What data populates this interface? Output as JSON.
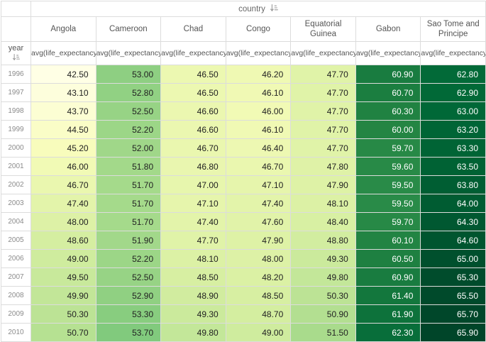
{
  "table": {
    "country_header": "country",
    "year_header": "year",
    "metric_label": "avg(life_expectancy)"
  },
  "chart_data": {
    "type": "heatmap",
    "row_field": "year",
    "column_field": "country",
    "metric": "avg(life_expectancy)",
    "columns": [
      "Angola",
      "Cameroon",
      "Chad",
      "Congo",
      "Equatorial Guinea",
      "Gabon",
      "Sao Tome and Principe"
    ],
    "rows": [
      "1996",
      "1997",
      "1998",
      "1999",
      "2000",
      "2001",
      "2002",
      "2003",
      "2004",
      "2005",
      "2006",
      "2007",
      "2008",
      "2009",
      "2010"
    ],
    "values": [
      [
        42.5,
        53.0,
        46.5,
        46.2,
        47.7,
        60.9,
        62.8
      ],
      [
        43.1,
        52.8,
        46.5,
        46.1,
        47.7,
        60.7,
        62.9
      ],
      [
        43.7,
        52.5,
        46.6,
        46.0,
        47.7,
        60.3,
        63.0
      ],
      [
        44.5,
        52.2,
        46.6,
        46.1,
        47.7,
        60.0,
        63.2
      ],
      [
        45.2,
        52.0,
        46.7,
        46.4,
        47.7,
        59.7,
        63.3
      ],
      [
        46.0,
        51.8,
        46.8,
        46.7,
        47.8,
        59.6,
        63.5
      ],
      [
        46.7,
        51.7,
        47.0,
        47.1,
        47.9,
        59.5,
        63.8
      ],
      [
        47.4,
        51.7,
        47.1,
        47.4,
        48.1,
        59.5,
        64.0
      ],
      [
        48.0,
        51.7,
        47.4,
        47.6,
        48.4,
        59.7,
        64.3
      ],
      [
        48.6,
        51.9,
        47.7,
        47.9,
        48.8,
        60.1,
        64.6
      ],
      [
        49.0,
        52.2,
        48.1,
        48.0,
        49.3,
        60.5,
        65.0
      ],
      [
        49.5,
        52.5,
        48.5,
        48.2,
        49.8,
        60.9,
        65.3
      ],
      [
        49.9,
        52.9,
        48.9,
        48.5,
        50.3,
        61.4,
        65.5
      ],
      [
        50.3,
        53.3,
        49.3,
        48.7,
        50.9,
        61.9,
        65.7
      ],
      [
        50.7,
        53.7,
        49.8,
        49.0,
        51.5,
        62.3,
        65.9
      ]
    ],
    "value_format": "0.00",
    "color_scale": {
      "name": "YlGn",
      "domain_min": 42.5,
      "domain_max": 65.9,
      "palette": [
        "#ffffe5",
        "#f7fcb9",
        "#d9f0a3",
        "#addd8e",
        "#78c679",
        "#41ab5d",
        "#238443",
        "#006837",
        "#004529"
      ],
      "light_text_threshold": 0.7,
      "dark_text_color": "#222222",
      "light_text_color": "#ffffff"
    }
  }
}
